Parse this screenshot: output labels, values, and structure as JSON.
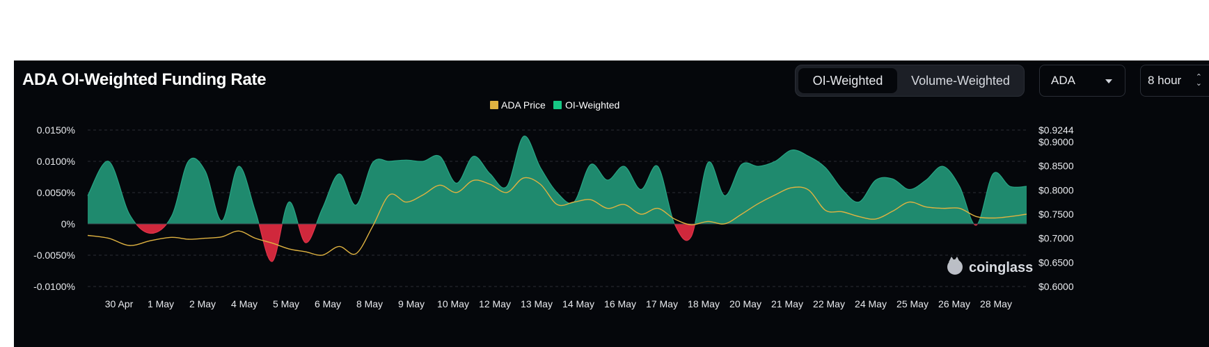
{
  "header": {
    "title": "ADA OI-Weighted Funding Rate",
    "toggle": [
      "OI-Weighted",
      "Volume-Weighted"
    ],
    "active_toggle": "OI-Weighted",
    "coin": "ADA",
    "interval": "8 hour"
  },
  "watermark": "coinglass",
  "colors": {
    "positive": "#1f8a6e",
    "negative": "#d0283c",
    "price": "#e0b341",
    "legend_oi": "#16c784",
    "background": "#05070b"
  },
  "chart_data": {
    "type": "area",
    "legend": [
      "ADA Price",
      "OI-Weighted"
    ],
    "x_ticks": [
      "30 Apr",
      "1 May",
      "2 May",
      "4 May",
      "5 May",
      "6 May",
      "8 May",
      "9 May",
      "10 May",
      "12 May",
      "13 May",
      "14 May",
      "16 May",
      "17 May",
      "18 May",
      "20 May",
      "21 May",
      "22 May",
      "24 May",
      "25 May",
      "26 May",
      "28 May"
    ],
    "y_left_ticks": [
      "0.0150%",
      "0.0100%",
      "0.0050%",
      "0%",
      "-0.0050%",
      "-0.0100%"
    ],
    "y_left_range": [
      -0.01,
      0.015
    ],
    "y_right_ticks": [
      "$0.9244",
      "$0.9000",
      "$0.8500",
      "$0.8000",
      "$0.7500",
      "$0.7000",
      "$0.6500",
      "$0.6000"
    ],
    "y_right_range": [
      0.6,
      0.9244
    ],
    "grid": true,
    "legend_position": "top-center",
    "series": [
      {
        "name": "OI-Weighted",
        "axis": "left",
        "unit": "%",
        "t": [
          0,
          0.5,
          1,
          1.5,
          2,
          2.4,
          2.8,
          3.2,
          3.6,
          4,
          4.4,
          4.8,
          5.2,
          5.6,
          6,
          6.4,
          6.8,
          7.2,
          7.6,
          8,
          8.4,
          8.8,
          9.2,
          9.6,
          10,
          10.4,
          10.8,
          11.2,
          11.6,
          12,
          12.4,
          12.8,
          13.2,
          13.6,
          14,
          14.4,
          14.8,
          15.2,
          15.6,
          16,
          16.4,
          16.8,
          17.2,
          17.6,
          18,
          18.4,
          18.8,
          19.2,
          19.6,
          20,
          20.4,
          20.8,
          21.2,
          21.6,
          22,
          22.4
        ],
        "values": [
          0.0045,
          0.01,
          0.0015,
          -0.0015,
          0.0012,
          0.01,
          0.0085,
          0.0005,
          0.0092,
          0.002,
          -0.006,
          0.0035,
          -0.003,
          0.0025,
          0.008,
          0.003,
          0.0098,
          0.01,
          0.0102,
          0.01,
          0.0108,
          0.0065,
          0.0108,
          0.008,
          0.006,
          0.014,
          0.009,
          0.005,
          0.0035,
          0.0095,
          0.007,
          0.0092,
          0.0055,
          0.0092,
          0.0,
          -0.002,
          0.0098,
          0.0045,
          0.0095,
          0.0092,
          0.01,
          0.0118,
          0.0108,
          0.009,
          0.0055,
          0.0035,
          0.007,
          0.0072,
          0.0055,
          0.007,
          0.0092,
          0.006,
          -0.0002,
          0.008,
          0.006,
          0.006
        ]
      },
      {
        "name": "ADA Price",
        "axis": "right",
        "unit": "$",
        "t": [
          0,
          0.5,
          1,
          1.5,
          2,
          2.4,
          2.8,
          3.2,
          3.6,
          4,
          4.4,
          4.8,
          5.2,
          5.6,
          6,
          6.4,
          6.8,
          7.2,
          7.6,
          8,
          8.4,
          8.8,
          9.2,
          9.6,
          10,
          10.4,
          10.8,
          11.2,
          11.6,
          12,
          12.4,
          12.8,
          13.2,
          13.6,
          14,
          14.4,
          14.8,
          15.2,
          15.6,
          16,
          16.4,
          16.8,
          17.2,
          17.6,
          18,
          18.4,
          18.8,
          19.2,
          19.6,
          20,
          20.4,
          20.8,
          21.2,
          21.6,
          22,
          22.4
        ],
        "values": [
          0.706,
          0.7,
          0.685,
          0.695,
          0.702,
          0.698,
          0.7,
          0.703,
          0.715,
          0.7,
          0.69,
          0.678,
          0.672,
          0.665,
          0.683,
          0.668,
          0.725,
          0.79,
          0.775,
          0.79,
          0.81,
          0.795,
          0.82,
          0.812,
          0.795,
          0.825,
          0.812,
          0.77,
          0.775,
          0.78,
          0.762,
          0.77,
          0.75,
          0.762,
          0.74,
          0.728,
          0.735,
          0.73,
          0.75,
          0.772,
          0.79,
          0.805,
          0.8,
          0.758,
          0.755,
          0.745,
          0.74,
          0.756,
          0.775,
          0.765,
          0.762,
          0.762,
          0.745,
          0.742,
          0.745,
          0.75
        ]
      }
    ]
  }
}
